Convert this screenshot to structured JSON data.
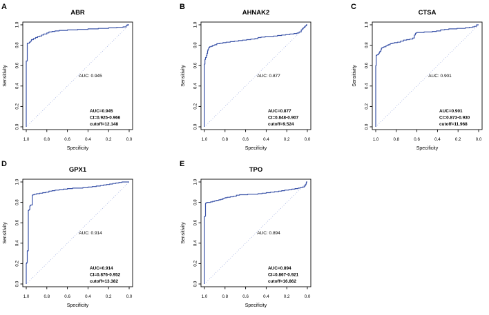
{
  "figure": {
    "background": "#ffffff"
  },
  "style": {
    "curve_color": "#3a53a8",
    "diagonal_color": "#97a6dd",
    "auc_text_color": "#4565c8",
    "stats_text_color": "#111111",
    "axis_color": "#000000"
  },
  "chart_data": [
    {
      "type": "line",
      "panel_label": "A",
      "title": "ABR",
      "xlabel": "Specificity",
      "ylabel": "Sensitivity",
      "x_ticks": [
        "1.0",
        "0.8",
        "0.6",
        "0.4",
        "0.2",
        "0.0"
      ],
      "y_ticks": [
        "0.0",
        "0.2",
        "0.4",
        "0.6",
        "0.8",
        "1.0"
      ],
      "xlim": [
        1.0,
        0.0
      ],
      "ylim": [
        0.0,
        1.0
      ],
      "x_axis_reversed": true,
      "grid": false,
      "legend": "none",
      "auc_label": "AUC: 0.945",
      "stats_lines": [
        "AUC=0.945",
        "CI=0.925-0.966",
        "cutoff=12.148"
      ],
      "series": [
        {
          "name": "ROC",
          "points": [
            [
              1.0,
              0.0
            ],
            [
              1.0,
              0.635
            ],
            [
              0.99,
              0.645
            ],
            [
              0.99,
              0.81
            ],
            [
              0.97,
              0.82
            ],
            [
              0.96,
              0.83
            ],
            [
              0.95,
              0.84
            ],
            [
              0.93,
              0.855
            ],
            [
              0.91,
              0.865
            ],
            [
              0.89,
              0.875
            ],
            [
              0.87,
              0.885
            ],
            [
              0.85,
              0.89
            ],
            [
              0.83,
              0.9
            ],
            [
              0.8,
              0.91
            ],
            [
              0.78,
              0.92
            ],
            [
              0.75,
              0.93
            ],
            [
              0.72,
              0.935
            ],
            [
              0.68,
              0.94
            ],
            [
              0.6,
              0.945
            ],
            [
              0.5,
              0.95
            ],
            [
              0.4,
              0.955
            ],
            [
              0.3,
              0.96
            ],
            [
              0.2,
              0.965
            ],
            [
              0.12,
              0.97
            ],
            [
              0.06,
              0.975
            ],
            [
              0.03,
              0.98
            ],
            [
              0.02,
              0.99
            ],
            [
              0.005,
              1.0
            ],
            [
              0.0,
              1.0
            ]
          ]
        }
      ]
    },
    {
      "type": "line",
      "panel_label": "B",
      "title": "AHNAK2",
      "xlabel": "Specificity",
      "ylabel": "Sensitivity",
      "x_ticks": [
        "1.0",
        "0.8",
        "0.6",
        "0.4",
        "0.2",
        "0.0"
      ],
      "y_ticks": [
        "0.0",
        "0.2",
        "0.4",
        "0.6",
        "0.8",
        "1.0"
      ],
      "xlim": [
        1.0,
        0.0
      ],
      "ylim": [
        0.0,
        1.0
      ],
      "x_axis_reversed": true,
      "grid": false,
      "legend": "none",
      "auc_label": "AUC: 0.877",
      "stats_lines": [
        "AUC=0.877",
        "CI=0.848-0.907",
        "cutoff=9.524"
      ],
      "series": [
        {
          "name": "ROC",
          "points": [
            [
              1.0,
              0.0
            ],
            [
              1.0,
              0.6
            ],
            [
              0.995,
              0.615
            ],
            [
              0.99,
              0.66
            ],
            [
              0.98,
              0.68
            ],
            [
              0.975,
              0.7
            ],
            [
              0.97,
              0.72
            ],
            [
              0.965,
              0.745
            ],
            [
              0.96,
              0.76
            ],
            [
              0.95,
              0.775
            ],
            [
              0.935,
              0.785
            ],
            [
              0.92,
              0.79
            ],
            [
              0.9,
              0.8
            ],
            [
              0.88,
              0.805
            ],
            [
              0.85,
              0.815
            ],
            [
              0.82,
              0.82
            ],
            [
              0.79,
              0.825
            ],
            [
              0.75,
              0.83
            ],
            [
              0.71,
              0.835
            ],
            [
              0.67,
              0.84
            ],
            [
              0.63,
              0.845
            ],
            [
              0.59,
              0.85
            ],
            [
              0.55,
              0.855
            ],
            [
              0.51,
              0.86
            ],
            [
              0.48,
              0.865
            ],
            [
              0.45,
              0.875
            ],
            [
              0.41,
              0.88
            ],
            [
              0.37,
              0.885
            ],
            [
              0.33,
              0.885
            ],
            [
              0.29,
              0.89
            ],
            [
              0.25,
              0.895
            ],
            [
              0.21,
              0.9
            ],
            [
              0.17,
              0.905
            ],
            [
              0.13,
              0.91
            ],
            [
              0.1,
              0.915
            ],
            [
              0.08,
              0.92
            ],
            [
              0.06,
              0.93
            ],
            [
              0.05,
              0.95
            ],
            [
              0.04,
              0.96
            ],
            [
              0.03,
              0.97
            ],
            [
              0.02,
              0.98
            ],
            [
              0.01,
              0.99
            ],
            [
              0.0,
              1.0
            ]
          ]
        }
      ]
    },
    {
      "type": "line",
      "panel_label": "C",
      "title": "CTSA",
      "xlabel": "Specificity",
      "ylabel": "Sensitivity",
      "x_ticks": [
        "1.0",
        "0.8",
        "0.6",
        "0.4",
        "0.2",
        "0.0"
      ],
      "y_ticks": [
        "0.0",
        "0.2",
        "0.4",
        "0.6",
        "0.8",
        "1.0"
      ],
      "xlim": [
        1.0,
        0.0
      ],
      "ylim": [
        0.0,
        1.0
      ],
      "x_axis_reversed": true,
      "grid": false,
      "legend": "none",
      "auc_label": "AUC: 0.901",
      "stats_lines": [
        "AUC=0.901",
        "CI=0.873-0.930",
        "cutoff=11.968"
      ],
      "series": [
        {
          "name": "ROC",
          "points": [
            [
              1.0,
              0.0
            ],
            [
              1.0,
              0.59
            ],
            [
              0.995,
              0.6
            ],
            [
              0.99,
              0.7
            ],
            [
              0.98,
              0.705
            ],
            [
              0.97,
              0.71
            ],
            [
              0.965,
              0.72
            ],
            [
              0.96,
              0.73
            ],
            [
              0.95,
              0.74
            ],
            [
              0.945,
              0.755
            ],
            [
              0.94,
              0.77
            ],
            [
              0.93,
              0.775
            ],
            [
              0.92,
              0.78
            ],
            [
              0.9,
              0.785
            ],
            [
              0.88,
              0.795
            ],
            [
              0.86,
              0.805
            ],
            [
              0.84,
              0.815
            ],
            [
              0.82,
              0.82
            ],
            [
              0.79,
              0.825
            ],
            [
              0.76,
              0.83
            ],
            [
              0.73,
              0.84
            ],
            [
              0.7,
              0.85
            ],
            [
              0.67,
              0.855
            ],
            [
              0.64,
              0.86
            ],
            [
              0.625,
              0.87
            ],
            [
              0.615,
              0.9
            ],
            [
              0.61,
              0.915
            ],
            [
              0.6,
              0.92
            ],
            [
              0.57,
              0.925
            ],
            [
              0.53,
              0.925
            ],
            [
              0.49,
              0.93
            ],
            [
              0.45,
              0.93
            ],
            [
              0.41,
              0.935
            ],
            [
              0.37,
              0.94
            ],
            [
              0.33,
              0.95
            ],
            [
              0.29,
              0.955
            ],
            [
              0.25,
              0.96
            ],
            [
              0.21,
              0.96
            ],
            [
              0.17,
              0.965
            ],
            [
              0.13,
              0.965
            ],
            [
              0.09,
              0.97
            ],
            [
              0.06,
              0.975
            ],
            [
              0.04,
              0.98
            ],
            [
              0.02,
              0.985
            ],
            [
              0.01,
              1.0
            ],
            [
              0.0,
              1.0
            ]
          ]
        }
      ]
    },
    {
      "type": "line",
      "panel_label": "D",
      "title": "GPX1",
      "xlabel": "Specificity",
      "ylabel": "Sensitivity",
      "x_ticks": [
        "1.0",
        "0.8",
        "0.6",
        "0.4",
        "0.2",
        "0.0"
      ],
      "y_ticks": [
        "0.0",
        "0.2",
        "0.4",
        "0.6",
        "0.8",
        "1.0"
      ],
      "xlim": [
        1.0,
        0.0
      ],
      "ylim": [
        0.0,
        1.0
      ],
      "x_axis_reversed": true,
      "grid": false,
      "legend": "none",
      "auc_label": "AUC: 0.914",
      "stats_lines": [
        "AUC=0.914",
        "CI=0.876-0.952",
        "cutoff=13.382"
      ],
      "series": [
        {
          "name": "ROC",
          "points": [
            [
              1.0,
              0.0
            ],
            [
              1.0,
              0.19
            ],
            [
              0.995,
              0.2
            ],
            [
              0.99,
              0.21
            ],
            [
              0.99,
              0.32
            ],
            [
              0.98,
              0.325
            ],
            [
              0.975,
              0.72
            ],
            [
              0.97,
              0.725
            ],
            [
              0.965,
              0.73
            ],
            [
              0.96,
              0.765
            ],
            [
              0.955,
              0.77
            ],
            [
              0.94,
              0.775
            ],
            [
              0.935,
              0.87
            ],
            [
              0.92,
              0.875
            ],
            [
              0.9,
              0.88
            ],
            [
              0.87,
              0.885
            ],
            [
              0.84,
              0.89
            ],
            [
              0.81,
              0.895
            ],
            [
              0.78,
              0.9
            ],
            [
              0.75,
              0.91
            ],
            [
              0.72,
              0.915
            ],
            [
              0.68,
              0.92
            ],
            [
              0.64,
              0.925
            ],
            [
              0.6,
              0.93
            ],
            [
              0.55,
              0.935
            ],
            [
              0.5,
              0.94
            ],
            [
              0.45,
              0.94
            ],
            [
              0.4,
              0.945
            ],
            [
              0.36,
              0.95
            ],
            [
              0.32,
              0.955
            ],
            [
              0.28,
              0.96
            ],
            [
              0.25,
              0.965
            ],
            [
              0.22,
              0.97
            ],
            [
              0.19,
              0.975
            ],
            [
              0.16,
              0.98
            ],
            [
              0.13,
              0.985
            ],
            [
              0.1,
              0.99
            ],
            [
              0.07,
              0.995
            ],
            [
              0.04,
              1.0
            ],
            [
              0.0,
              1.0
            ]
          ]
        }
      ]
    },
    {
      "type": "line",
      "panel_label": "E",
      "title": "TPO",
      "xlabel": "Specificity",
      "ylabel": "Sensitivity",
      "x_ticks": [
        "1.0",
        "0.8",
        "0.6",
        "0.4",
        "0.2",
        "0.0"
      ],
      "y_ticks": [
        "0.0",
        "0.2",
        "0.4",
        "0.6",
        "0.8",
        "1.0"
      ],
      "xlim": [
        1.0,
        0.0
      ],
      "ylim": [
        0.0,
        1.0
      ],
      "x_axis_reversed": true,
      "grid": false,
      "legend": "none",
      "auc_label": "AUC: 0.894",
      "stats_lines": [
        "AUC=0.894",
        "CI=0.867-0.921",
        "cutoff=16.862"
      ],
      "series": [
        {
          "name": "ROC",
          "points": [
            [
              1.0,
              0.0
            ],
            [
              1.0,
              0.655
            ],
            [
              0.995,
              0.66
            ],
            [
              0.99,
              0.665
            ],
            [
              0.985,
              0.79
            ],
            [
              0.975,
              0.795
            ],
            [
              0.96,
              0.8
            ],
            [
              0.94,
              0.8
            ],
            [
              0.92,
              0.805
            ],
            [
              0.9,
              0.81
            ],
            [
              0.88,
              0.815
            ],
            [
              0.86,
              0.82
            ],
            [
              0.84,
              0.825
            ],
            [
              0.82,
              0.83
            ],
            [
              0.8,
              0.84
            ],
            [
              0.78,
              0.845
            ],
            [
              0.75,
              0.85
            ],
            [
              0.72,
              0.855
            ],
            [
              0.69,
              0.86
            ],
            [
              0.66,
              0.87
            ],
            [
              0.63,
              0.875
            ],
            [
              0.58,
              0.875
            ],
            [
              0.53,
              0.88
            ],
            [
              0.48,
              0.88
            ],
            [
              0.44,
              0.885
            ],
            [
              0.4,
              0.89
            ],
            [
              0.36,
              0.895
            ],
            [
              0.32,
              0.9
            ],
            [
              0.28,
              0.905
            ],
            [
              0.25,
              0.91
            ],
            [
              0.22,
              0.915
            ],
            [
              0.18,
              0.92
            ],
            [
              0.15,
              0.925
            ],
            [
              0.12,
              0.93
            ],
            [
              0.09,
              0.935
            ],
            [
              0.07,
              0.94
            ],
            [
              0.05,
              0.945
            ],
            [
              0.03,
              0.95
            ],
            [
              0.02,
              0.96
            ],
            [
              0.015,
              0.97
            ],
            [
              0.01,
              0.98
            ],
            [
              0.005,
              1.0
            ],
            [
              0.0,
              1.0
            ]
          ]
        }
      ]
    }
  ]
}
